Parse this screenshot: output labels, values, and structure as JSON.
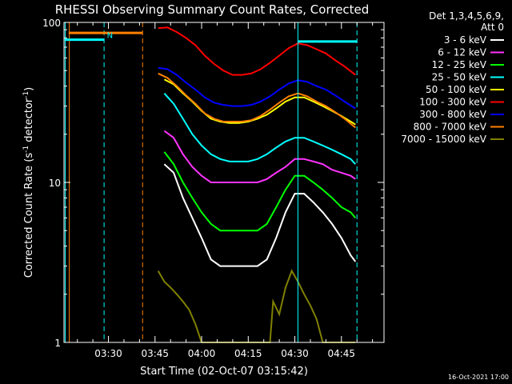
{
  "chart_data": {
    "type": "line",
    "title": "RHESSI Observing Summary Count Rates, Corrected",
    "xlabel": "Start Time (02-Oct-07 03:15:42)",
    "ylabel_main": "Corrected Count Rate (s",
    "ylabel_sup1": "-1",
    "ylabel_mid": " detector",
    "ylabel_sup2": "-1",
    "ylabel_end": ")",
    "y_scale": "log",
    "ylim": [
      1,
      100
    ],
    "xlim_minutes": [
      195.7,
      298.7
    ],
    "grid": false,
    "legend_position": "right",
    "x_ticks": [
      {
        "label": "03:30",
        "value": 210
      },
      {
        "label": "03:45",
        "value": 225
      },
      {
        "label": "04:00",
        "value": 240
      },
      {
        "label": "04:15",
        "value": 255
      },
      {
        "label": "04:30",
        "value": 270
      },
      {
        "label": "04:45",
        "value": 285
      }
    ],
    "y_ticks": [
      {
        "label": "1",
        "value": 1
      },
      {
        "label": "10",
        "value": 10
      },
      {
        "label": "100",
        "value": 100
      }
    ],
    "legend_header": [
      "Det 1,3,4,5,6,9,",
      "Att 0"
    ],
    "series": [
      {
        "name": "3 - 6 keV",
        "color": "#ffffff",
        "points": [
          [
            228,
            13
          ],
          [
            231,
            11.5
          ],
          [
            234,
            8
          ],
          [
            237,
            6
          ],
          [
            240,
            4.5
          ],
          [
            243,
            3.3
          ],
          [
            246,
            3
          ],
          [
            249,
            3
          ],
          [
            252,
            3
          ],
          [
            255,
            3
          ],
          [
            258,
            3
          ],
          [
            261,
            3.3
          ],
          [
            264,
            4.5
          ],
          [
            267,
            6.5
          ],
          [
            270,
            8.5
          ],
          [
            273,
            8.5
          ],
          [
            276,
            7.5
          ],
          [
            279,
            6.5
          ],
          [
            282,
            5.5
          ],
          [
            285,
            4.5
          ],
          [
            288,
            3.5
          ],
          [
            289.5,
            3.2
          ]
        ]
      },
      {
        "name": "6 - 12 keV",
        "color": "#ff33ff",
        "points": [
          [
            228,
            21
          ],
          [
            231,
            19
          ],
          [
            234,
            15
          ],
          [
            237,
            12.5
          ],
          [
            240,
            11
          ],
          [
            243,
            10
          ],
          [
            246,
            10
          ],
          [
            249,
            10
          ],
          [
            252,
            10
          ],
          [
            255,
            10
          ],
          [
            258,
            10
          ],
          [
            261,
            10.5
          ],
          [
            264,
            11.5
          ],
          [
            267,
            12.5
          ],
          [
            270,
            14
          ],
          [
            273,
            14
          ],
          [
            276,
            13.5
          ],
          [
            279,
            13
          ],
          [
            282,
            12
          ],
          [
            285,
            11.5
          ],
          [
            288,
            11
          ],
          [
            289.5,
            10.5
          ]
        ]
      },
      {
        "name": "12 - 25 keV",
        "color": "#00ff00",
        "points": [
          [
            228,
            15.5
          ],
          [
            231,
            13
          ],
          [
            234,
            10
          ],
          [
            237,
            8
          ],
          [
            240,
            6.5
          ],
          [
            243,
            5.5
          ],
          [
            246,
            5
          ],
          [
            249,
            5
          ],
          [
            252,
            5
          ],
          [
            255,
            5
          ],
          [
            258,
            5
          ],
          [
            261,
            5.5
          ],
          [
            264,
            7
          ],
          [
            267,
            9
          ],
          [
            270,
            11
          ],
          [
            273,
            11
          ],
          [
            276,
            10
          ],
          [
            279,
            9
          ],
          [
            282,
            8
          ],
          [
            285,
            7
          ],
          [
            288,
            6.5
          ],
          [
            289.5,
            6
          ]
        ]
      },
      {
        "name": "25 - 50 keV",
        "color": "#00ffff",
        "points": [
          [
            228,
            36
          ],
          [
            231,
            31
          ],
          [
            234,
            25
          ],
          [
            237,
            20
          ],
          [
            240,
            17
          ],
          [
            243,
            15
          ],
          [
            246,
            14
          ],
          [
            249,
            13.5
          ],
          [
            252,
            13.5
          ],
          [
            255,
            13.5
          ],
          [
            258,
            14
          ],
          [
            261,
            15
          ],
          [
            264,
            16.5
          ],
          [
            267,
            18
          ],
          [
            270,
            19
          ],
          [
            273,
            19
          ],
          [
            276,
            18
          ],
          [
            279,
            17
          ],
          [
            282,
            16
          ],
          [
            285,
            15
          ],
          [
            288,
            14
          ],
          [
            289.5,
            13
          ]
        ]
      },
      {
        "name": "50 - 100 keV",
        "color": "#ffff00",
        "points": [
          [
            228,
            44
          ],
          [
            231,
            41
          ],
          [
            234,
            36
          ],
          [
            237,
            32
          ],
          [
            240,
            28
          ],
          [
            243,
            25
          ],
          [
            246,
            24
          ],
          [
            249,
            23.5
          ],
          [
            252,
            23.5
          ],
          [
            255,
            24
          ],
          [
            258,
            25
          ],
          [
            261,
            26.5
          ],
          [
            264,
            29
          ],
          [
            267,
            32
          ],
          [
            270,
            34
          ],
          [
            273,
            34
          ],
          [
            276,
            32
          ],
          [
            279,
            30
          ],
          [
            282,
            28
          ],
          [
            285,
            26
          ],
          [
            288,
            24
          ],
          [
            289.5,
            23
          ]
        ]
      },
      {
        "name": "100 - 300 keV",
        "color": "#ff0000",
        "points": [
          [
            226,
            92
          ],
          [
            229,
            93
          ],
          [
            232,
            87
          ],
          [
            235,
            80
          ],
          [
            238,
            72
          ],
          [
            241,
            62
          ],
          [
            244,
            55
          ],
          [
            247,
            50
          ],
          [
            250,
            47
          ],
          [
            253,
            47
          ],
          [
            256,
            48
          ],
          [
            259,
            51
          ],
          [
            262,
            56
          ],
          [
            265,
            62
          ],
          [
            268,
            69
          ],
          [
            271,
            74
          ],
          [
            274,
            72
          ],
          [
            277,
            68
          ],
          [
            280,
            64
          ],
          [
            283,
            58
          ],
          [
            286,
            53
          ],
          [
            289.5,
            47
          ]
        ]
      },
      {
        "name": "300 - 800 keV",
        "color": "#0000ff",
        "points": [
          [
            226,
            52
          ],
          [
            229,
            51
          ],
          [
            232,
            47
          ],
          [
            235,
            42
          ],
          [
            238,
            38
          ],
          [
            241,
            34
          ],
          [
            244,
            31.5
          ],
          [
            247,
            30.5
          ],
          [
            250,
            30
          ],
          [
            253,
            30
          ],
          [
            256,
            30.5
          ],
          [
            259,
            32
          ],
          [
            262,
            34.5
          ],
          [
            265,
            38
          ],
          [
            268,
            41.5
          ],
          [
            271,
            43.5
          ],
          [
            274,
            42.5
          ],
          [
            277,
            40
          ],
          [
            280,
            38
          ],
          [
            283,
            35
          ],
          [
            286,
            32
          ],
          [
            289.5,
            29
          ]
        ]
      },
      {
        "name": "800 - 7000 keV",
        "color": "#ff8000",
        "points": [
          [
            226,
            48
          ],
          [
            229,
            45
          ],
          [
            232,
            40
          ],
          [
            235,
            35
          ],
          [
            238,
            31
          ],
          [
            241,
            27
          ],
          [
            244,
            25
          ],
          [
            247,
            24
          ],
          [
            250,
            24
          ],
          [
            253,
            24
          ],
          [
            256,
            24.5
          ],
          [
            259,
            26
          ],
          [
            262,
            28.5
          ],
          [
            265,
            31.5
          ],
          [
            268,
            34.5
          ],
          [
            271,
            36
          ],
          [
            274,
            34.5
          ],
          [
            277,
            32
          ],
          [
            280,
            30
          ],
          [
            283,
            27.5
          ],
          [
            286,
            25
          ],
          [
            289.5,
            22
          ]
        ]
      },
      {
        "name": "7000 - 15000 keV",
        "color": "#808000",
        "points": [
          [
            226,
            2.8
          ],
          [
            228,
            2.4
          ],
          [
            230,
            2.2
          ],
          [
            232,
            2
          ],
          [
            234,
            1.8
          ],
          [
            236,
            1.6
          ],
          [
            238,
            1.3
          ],
          [
            240,
            1
          ],
          [
            262,
            1
          ],
          [
            263,
            1.8
          ],
          [
            265,
            1.5
          ],
          [
            267,
            2.2
          ],
          [
            269,
            2.8
          ],
          [
            271,
            2.4
          ],
          [
            273,
            2
          ],
          [
            275,
            1.7
          ],
          [
            277,
            1.4
          ],
          [
            279,
            1
          ],
          [
            289.5,
            1
          ]
        ]
      }
    ],
    "annotations": {
      "attenuator_bars": [
        {
          "name": "cyan-level-bar",
          "color": "#00ffff",
          "x_start": 195.9,
          "x_end": 208.6,
          "y": 78
        },
        {
          "name": "orange-level-bar",
          "color": "#ff8000",
          "x_start": 197.2,
          "x_end": 221,
          "y": 86
        },
        {
          "name": "cyan-level-bar-right",
          "color": "#00ffff",
          "x_start": 271,
          "x_end": 290,
          "y": 76
        }
      ],
      "vertical_lines": [
        {
          "name": "cyan-solid-line-left",
          "color": "#00ffff",
          "x": 196.1,
          "style": "solid"
        },
        {
          "name": "orange-solid-line-left",
          "color": "#ff8000",
          "x": 197.4,
          "style": "solid"
        },
        {
          "name": "cyan-dashed-line",
          "color": "#00ffff",
          "x": 208.6,
          "style": "dashed"
        },
        {
          "name": "orange-dashed-line",
          "color": "#ff8000",
          "x": 221,
          "style": "dashed"
        },
        {
          "name": "cyan-solid-line-right",
          "color": "#00ffff",
          "x": 271,
          "style": "solid"
        },
        {
          "name": "cyan-dashed-line-right",
          "color": "#00ffff",
          "x": 290,
          "style": "dashed"
        }
      ],
      "n_marker": {
        "label": "N",
        "color": "#00ffff",
        "x": 209.5,
        "y": 80
      }
    }
  },
  "footer": {
    "timestamp": "16-Oct-2021 17:00"
  }
}
